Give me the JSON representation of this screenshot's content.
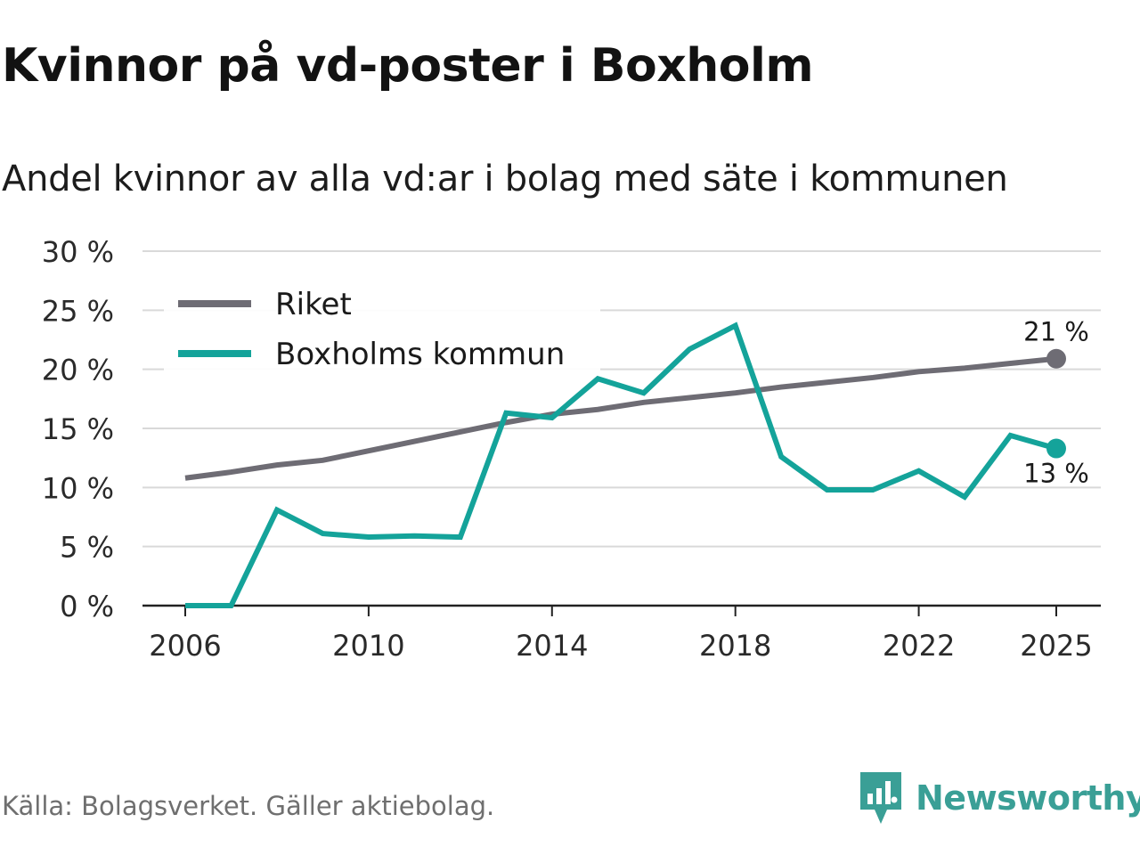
{
  "title": "Kvinnor på vd-poster i Boxholm",
  "subtitle": "Andel kvinnor av alla vd:ar i bolag med säte i kommunen",
  "source": "Källa: Bolagsverket. Gäller aktiebolag.",
  "brand": "Newsworthy",
  "colors": {
    "riket": "#6e6c74",
    "kommun": "#14a39a",
    "grid": "#d9d9d9",
    "axis": "#222222",
    "brand": "#3a9f96"
  },
  "chart_data": {
    "type": "line",
    "title": "Kvinnor på vd-poster i Boxholm",
    "subtitle": "Andel kvinnor av alla vd:ar i bolag med säte i kommunen",
    "xlabel": "",
    "ylabel": "",
    "x": [
      2006,
      2007,
      2008,
      2009,
      2010,
      2011,
      2012,
      2013,
      2014,
      2015,
      2016,
      2017,
      2018,
      2019,
      2020,
      2021,
      2022,
      2023,
      2024,
      2025
    ],
    "xticks": [
      2006,
      2010,
      2014,
      2018,
      2022,
      2025
    ],
    "xlim": [
      2006,
      2025
    ],
    "ylim": [
      0,
      30
    ],
    "yticks": [
      0,
      5,
      10,
      15,
      20,
      25,
      30
    ],
    "ytick_labels": [
      "0 %",
      "5 %",
      "10 %",
      "15 %",
      "20 %",
      "25 %",
      "30 %"
    ],
    "grid": true,
    "legend_position": "top-left",
    "series": [
      {
        "name": "Riket",
        "color": "#6e6c74",
        "values": [
          10.8,
          11.3,
          11.9,
          12.3,
          13.1,
          13.9,
          14.7,
          15.5,
          16.2,
          16.6,
          17.2,
          17.6,
          18.0,
          18.5,
          18.9,
          19.3,
          19.8,
          20.1,
          20.5,
          20.9
        ],
        "end_label": "21 %"
      },
      {
        "name": "Boxholms kommun",
        "color": "#14a39a",
        "values": [
          0,
          0,
          8.1,
          6.1,
          5.8,
          5.9,
          5.8,
          16.3,
          15.9,
          19.2,
          18.0,
          21.7,
          23.7,
          12.6,
          9.8,
          9.8,
          11.4,
          9.2,
          14.4,
          13.3
        ],
        "end_label": "13 %"
      }
    ]
  }
}
